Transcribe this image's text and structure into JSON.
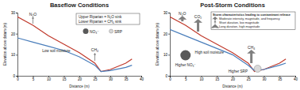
{
  "chart_data": [
    {
      "type": "line",
      "title": "Baseflow Conditions",
      "x_label": "Distance (m)",
      "y_label": "Elevation above datum (m)",
      "x": [
        0,
        5,
        10,
        15,
        20,
        25,
        27,
        30,
        35,
        37
      ],
      "series": [
        {
          "color": "#c0392b",
          "values": [
            28,
            24,
            19,
            15,
            11,
            6,
            2,
            3,
            6,
            8
          ]
        },
        {
          "color": "#4a7ebb",
          "values": [
            18,
            16,
            14,
            12,
            9,
            5,
            2,
            2.5,
            4,
            5
          ]
        }
      ],
      "xlim": [
        0,
        40
      ],
      "xticks": [
        0,
        5,
        10,
        15,
        20,
        25,
        30,
        35,
        40
      ],
      "ylim": [
        0,
        30
      ],
      "yticks": [
        0,
        10,
        20,
        30
      ],
      "grid": false,
      "annotations": [
        "N₂O",
        "CH₄",
        "Low soil moisture"
      ],
      "key": [
        "Upper Riparian = N₂O sink",
        "Lower Riparian = CH₄ sink"
      ],
      "symbols": [
        "NO₃⁻",
        "SRP"
      ]
    },
    {
      "type": "line",
      "title": "Post-Storm Conditions",
      "x_label": "Distance (m)",
      "y_label": "Elevation above datum (m)",
      "x": [
        0,
        5,
        10,
        15,
        20,
        25,
        27,
        30,
        35,
        37
      ],
      "series": [
        {
          "color": "#c0392b",
          "values": [
            28,
            24,
            19,
            15,
            11,
            6,
            2,
            3,
            6,
            8
          ]
        },
        {
          "color": "#4a7ebb",
          "values": [
            22,
            19,
            16,
            13,
            10,
            5,
            2.5,
            3,
            5,
            6
          ]
        }
      ],
      "xlim": [
        0,
        40
      ],
      "xticks": [
        0,
        5,
        10,
        15,
        20,
        25,
        30,
        35,
        40
      ],
      "ylim": [
        0,
        30
      ],
      "yticks": [
        0,
        10,
        20,
        30
      ],
      "grid": false,
      "annotations": [
        "N₂O",
        "CO₂",
        "CH₄",
        "High soil moisture"
      ],
      "symbols": [
        "Higher NO₃⁻",
        "Higher SRP"
      ],
      "box_title": "Storm characteristics leading to contaminant release",
      "box_items": [
        "Moderate intensity, magnitude, and frequency",
        "Short duration, low magnitude",
        "Long duration, high magnitude"
      ]
    }
  ]
}
